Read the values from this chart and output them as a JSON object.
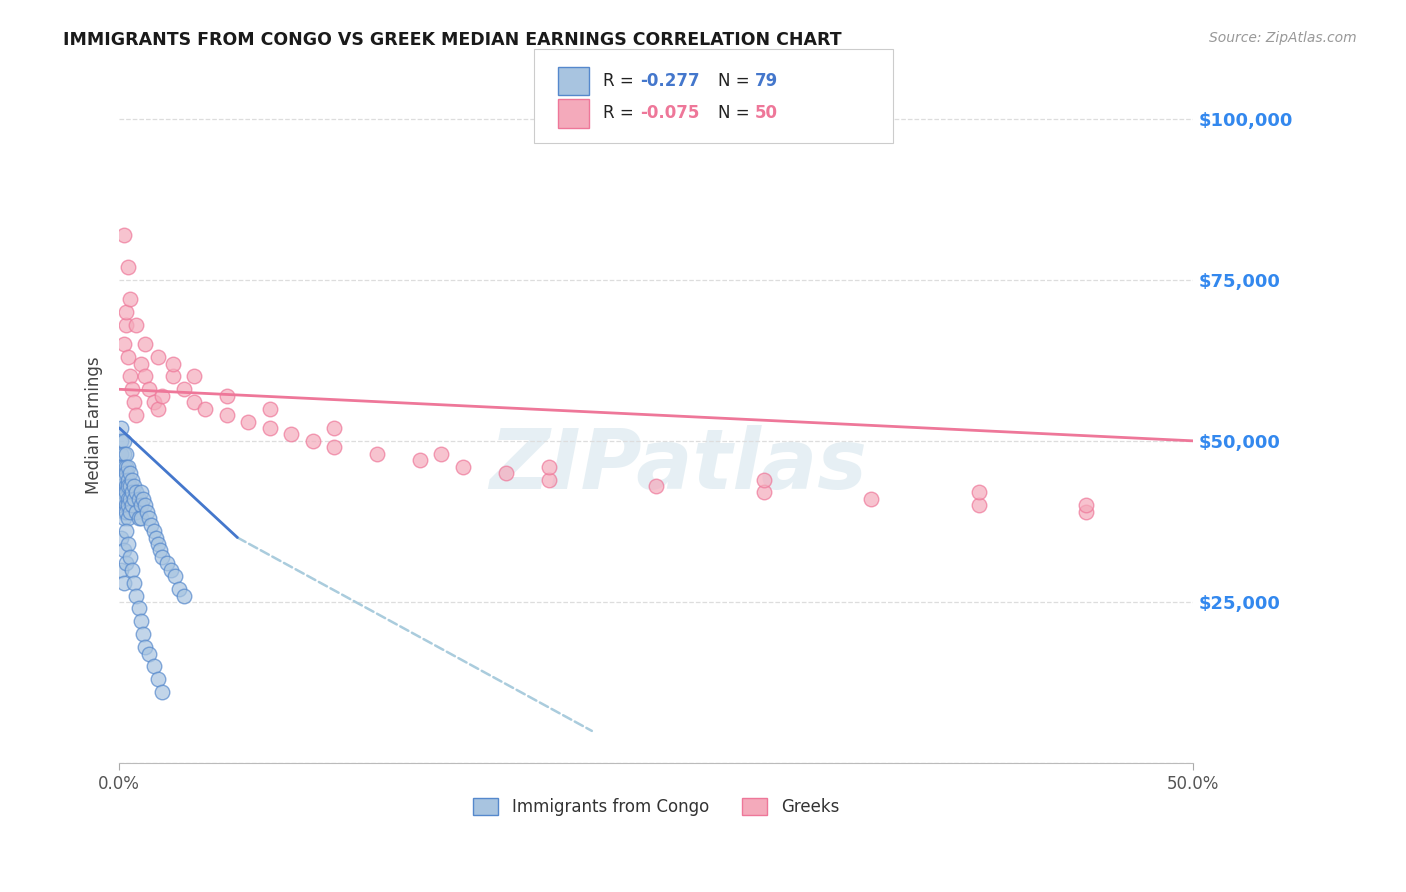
{
  "title": "IMMIGRANTS FROM CONGO VS GREEK MEDIAN EARNINGS CORRELATION CHART",
  "source": "Source: ZipAtlas.com",
  "ylabel": "Median Earnings",
  "x_min": 0.0,
  "x_max": 0.5,
  "y_min": 0,
  "y_max": 105000,
  "x_tick_positions": [
    0.0,
    0.5
  ],
  "x_tick_labels": [
    "0.0%",
    "50.0%"
  ],
  "y_ticks": [
    0,
    25000,
    50000,
    75000,
    100000
  ],
  "y_tick_labels": [
    "",
    "$25,000",
    "$50,000",
    "$75,000",
    "$100,000"
  ],
  "legend_label1": "Immigrants from Congo",
  "legend_label2": "Greeks",
  "color_blue_fill": "#A8C4E0",
  "color_pink_fill": "#F4AABB",
  "color_blue_edge": "#5588CC",
  "color_pink_edge": "#EE7799",
  "color_blue_line": "#4477CC",
  "color_pink_line": "#EE7799",
  "color_dashed": "#AACCDD",
  "color_axis_labels": "#3388EE",
  "watermark": "ZIPatlas",
  "congo_x": [
    0.001,
    0.001,
    0.001,
    0.001,
    0.001,
    0.001,
    0.001,
    0.001,
    0.001,
    0.002,
    0.002,
    0.002,
    0.002,
    0.002,
    0.002,
    0.002,
    0.002,
    0.003,
    0.003,
    0.003,
    0.003,
    0.003,
    0.003,
    0.003,
    0.004,
    0.004,
    0.004,
    0.004,
    0.004,
    0.004,
    0.005,
    0.005,
    0.005,
    0.005,
    0.006,
    0.006,
    0.006,
    0.007,
    0.007,
    0.008,
    0.008,
    0.009,
    0.009,
    0.01,
    0.01,
    0.01,
    0.011,
    0.012,
    0.013,
    0.014,
    0.015,
    0.016,
    0.017,
    0.018,
    0.019,
    0.02,
    0.022,
    0.024,
    0.026,
    0.028,
    0.03,
    0.001,
    0.001,
    0.002,
    0.002,
    0.003,
    0.003,
    0.004,
    0.005,
    0.006,
    0.007,
    0.008,
    0.009,
    0.01,
    0.011,
    0.012,
    0.014,
    0.016,
    0.018,
    0.02
  ],
  "congo_y": [
    52000,
    50000,
    48000,
    46000,
    44000,
    43000,
    42000,
    41000,
    40000,
    50000,
    48000,
    46000,
    44000,
    42000,
    41000,
    39000,
    38000,
    48000,
    46000,
    45000,
    43000,
    42000,
    40000,
    39000,
    46000,
    44000,
    43000,
    41000,
    40000,
    38000,
    45000,
    43000,
    41000,
    39000,
    44000,
    42000,
    40000,
    43000,
    41000,
    42000,
    39000,
    41000,
    38000,
    42000,
    40000,
    38000,
    41000,
    40000,
    39000,
    38000,
    37000,
    36000,
    35000,
    34000,
    33000,
    32000,
    31000,
    30000,
    29000,
    27000,
    26000,
    35000,
    30000,
    33000,
    28000,
    36000,
    31000,
    34000,
    32000,
    30000,
    28000,
    26000,
    24000,
    22000,
    20000,
    18000,
    17000,
    15000,
    13000,
    11000
  ],
  "greek_x": [
    0.002,
    0.003,
    0.004,
    0.005,
    0.006,
    0.007,
    0.008,
    0.01,
    0.012,
    0.014,
    0.016,
    0.018,
    0.02,
    0.025,
    0.03,
    0.035,
    0.04,
    0.05,
    0.06,
    0.07,
    0.08,
    0.09,
    0.1,
    0.12,
    0.14,
    0.16,
    0.18,
    0.2,
    0.25,
    0.3,
    0.35,
    0.4,
    0.45,
    0.003,
    0.005,
    0.008,
    0.012,
    0.018,
    0.025,
    0.035,
    0.05,
    0.07,
    0.1,
    0.15,
    0.2,
    0.3,
    0.4,
    0.45,
    0.002,
    0.004
  ],
  "greek_y": [
    65000,
    68000,
    63000,
    60000,
    58000,
    56000,
    54000,
    62000,
    60000,
    58000,
    56000,
    55000,
    57000,
    60000,
    58000,
    56000,
    55000,
    54000,
    53000,
    52000,
    51000,
    50000,
    49000,
    48000,
    47000,
    46000,
    45000,
    44000,
    43000,
    42000,
    41000,
    40000,
    39000,
    70000,
    72000,
    68000,
    65000,
    63000,
    62000,
    60000,
    57000,
    55000,
    52000,
    48000,
    46000,
    44000,
    42000,
    40000,
    82000,
    77000
  ],
  "blue_line_x": [
    0.0,
    0.055
  ],
  "blue_line_y": [
    52000,
    35000
  ],
  "dashed_line_x": [
    0.055,
    0.22
  ],
  "dashed_line_y": [
    35000,
    5000
  ],
  "pink_line_x": [
    0.0,
    0.5
  ],
  "pink_line_y": [
    58000,
    50000
  ]
}
